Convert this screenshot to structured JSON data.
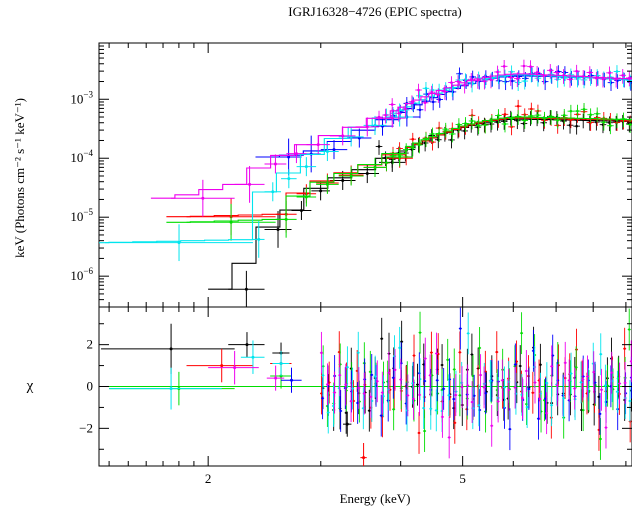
{
  "chart_data": {
    "type": "scatter",
    "title": "IGRJ16328−4726 (EPIC spectra)",
    "xlabel": "Energy (keV)",
    "xscale": "log",
    "xlim": [
      1.35,
      9.2
    ],
    "xticks": [
      {
        "v": 2,
        "label": "2"
      },
      {
        "v": 5,
        "label": "5"
      }
    ],
    "colors": {
      "black": "#000000",
      "red": "#ff0000",
      "green": "#00dd00",
      "blue": "#0000ff",
      "cyan": "#00e5ee",
      "magenta": "#ee00ee"
    },
    "upper": {
      "ylabel": "keV (Photons cm⁻² s⁻¹ keV⁻¹)",
      "yscale": "log",
      "ylim": [
        3e-07,
        0.009
      ],
      "yticks": [
        {
          "v": 1e-06,
          "base": "10",
          "exp": "−6"
        },
        {
          "v": 1e-05,
          "base": "10",
          "exp": "−5"
        },
        {
          "v": 0.0001,
          "base": "10",
          "exp": "−4"
        },
        {
          "v": 0.001,
          "base": "10",
          "exp": "−3"
        }
      ],
      "series": [
        {
          "color": "#000000",
          "low": [
            [
              2.15,
              6e-07
            ],
            [
              2.45,
              6.2e-06
            ],
            [
              2.7,
              1.3e-05
            ],
            [
              2.9,
              2.8e-05
            ],
            [
              3.1,
              4.2e-05
            ],
            [
              3.4,
              5.5e-05
            ],
            [
              3.7,
              8.5e-05
            ]
          ],
          "plateau": 0.00042,
          "peak": 0.00046
        },
        {
          "color": "#ff0000",
          "low": [
            [
              1.85,
              1.02e-05
            ],
            [
              2.55,
              1.12e-05
            ],
            [
              2.75,
              2.5e-05
            ],
            [
              2.95,
              3.8e-05
            ],
            [
              3.2,
              5.2e-05
            ],
            [
              3.5,
              7e-05
            ],
            [
              3.8,
              0.0001
            ]
          ],
          "plateau": 0.00044,
          "peak": 0.00048
        },
        {
          "color": "#00dd00",
          "low": [
            [
              1.85,
              8.2e-06
            ],
            [
              2.55,
              9.2e-06
            ],
            [
              2.75,
              2.2e-05
            ],
            [
              2.95,
              3.6e-05
            ],
            [
              3.2,
              5e-05
            ],
            [
              3.5,
              7e-05
            ],
            [
              3.8,
              0.000105
            ]
          ],
          "plateau": 0.00045,
          "peak": 0.0005
        },
        {
          "color": "#0000ff",
          "low": [
            [
              2.55,
              0.000105
            ],
            [
              2.8,
              0.000118
            ],
            [
              3.0,
              0.00014
            ],
            [
              3.3,
              0.00022
            ],
            [
              3.6,
              0.00035
            ],
            [
              3.9,
              0.0005
            ]
          ],
          "plateau": 0.0022,
          "peak": 0.0025
        },
        {
          "color": "#00e5ee",
          "low": [
            [
              1.38,
              3.7e-06
            ],
            [
              2.35,
              4.2e-06
            ],
            [
              2.45,
              2.7e-05
            ],
            [
              2.6,
              4.5e-05
            ],
            [
              2.75,
              7.2e-05
            ],
            [
              2.95,
              0.00013
            ],
            [
              3.2,
              0.00023
            ],
            [
              3.5,
              0.00036
            ],
            [
              3.8,
              0.0005
            ]
          ],
          "plateau": 0.0021,
          "peak": 0.0026
        },
        {
          "color": "#ee00ee",
          "low": [
            [
              1.75,
              2.1e-05
            ],
            [
              2.2,
              3.6e-05
            ],
            [
              2.45,
              8e-05
            ],
            [
              2.65,
              0.00012
            ],
            [
              2.85,
              0.00017
            ],
            [
              3.1,
              0.00024
            ],
            [
              3.4,
              0.00034
            ],
            [
              3.7,
              0.00048
            ]
          ],
          "plateau": 0.0022,
          "peak": 0.0027
        }
      ]
    },
    "lower": {
      "ylabel": "χ",
      "ylim": [
        -3.8,
        3.8
      ],
      "yticks": [
        {
          "v": 2,
          "label": "2"
        },
        {
          "v": 0,
          "label": "0"
        },
        {
          "v": -2,
          "label": "−2"
        }
      ],
      "residuals": [
        {
          "color": "#000000",
          "points": [
            [
              1.75,
              1.8,
              0.45,
              1.2
            ],
            [
              2.3,
              2.0,
              0.15,
              0.6
            ],
            [
              2.6,
              1.6,
              0.08,
              0.5
            ],
            [
              3.3,
              -1.8,
              0.05,
              0.6
            ]
          ]
        },
        {
          "color": "#ff0000",
          "points": [
            [
              2.1,
              1.0,
              0.25,
              0.8
            ],
            [
              2.6,
              1.1,
              0.1,
              0.6
            ],
            [
              3.5,
              -3.4,
              0.04,
              0.7
            ]
          ]
        },
        {
          "color": "#00dd00",
          "points": [
            [
              1.8,
              -0.1,
              0.4,
              0.8
            ],
            [
              2.6,
              0.5,
              0.1,
              0.6
            ]
          ]
        },
        {
          "color": "#0000ff",
          "points": [
            [
              2.7,
              0.3,
              0.1,
              0.6
            ]
          ]
        },
        {
          "color": "#00e5ee",
          "points": [
            [
              1.75,
              -0.1,
              0.35,
              1.0
            ],
            [
              2.35,
              1.4,
              0.1,
              0.8
            ],
            [
              2.6,
              1.1,
              0.08,
              0.6
            ]
          ]
        },
        {
          "color": "#ee00ee",
          "points": [
            [
              2.2,
              0.9,
              0.2,
              0.8
            ],
            [
              2.55,
              0.4,
              0.08,
              0.6
            ]
          ]
        }
      ]
    }
  }
}
